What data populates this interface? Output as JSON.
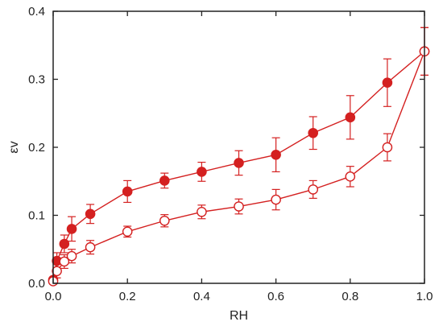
{
  "chart_data": {
    "type": "scatter",
    "xlabel": "RH",
    "ylabel": "εv",
    "xlim": [
      0.0,
      1.0
    ],
    "ylim": [
      0.0,
      0.4
    ],
    "xticks": [
      0.0,
      0.2,
      0.4,
      0.6,
      0.8,
      1.0
    ],
    "yticks": [
      0.0,
      0.1,
      0.2,
      0.3,
      0.4
    ],
    "xtick_labels": [
      "0.0",
      "0.2",
      "0.4",
      "0.6",
      "0.8",
      "1.0"
    ],
    "ytick_labels": [
      "0.0",
      "0.1",
      "0.2",
      "0.3",
      "0.4"
    ],
    "grid": false,
    "legend": "none",
    "colors": {
      "series": "#d42020",
      "axis": "#222222"
    },
    "series": [
      {
        "marker": "filled-circle",
        "x": [
          0.0,
          0.01,
          0.03,
          0.05,
          0.1,
          0.2,
          0.3,
          0.4,
          0.5,
          0.6,
          0.7,
          0.8,
          0.9,
          1.0
        ],
        "y": [
          0.005,
          0.033,
          0.058,
          0.08,
          0.102,
          0.135,
          0.151,
          0.164,
          0.177,
          0.189,
          0.221,
          0.244,
          0.295,
          0.341
        ],
        "err": [
          0.004,
          0.012,
          0.013,
          0.018,
          0.014,
          0.016,
          0.011,
          0.014,
          0.018,
          0.025,
          0.024,
          0.032,
          0.035,
          0.035
        ]
      },
      {
        "marker": "open-circle",
        "x": [
          0.0,
          0.01,
          0.03,
          0.05,
          0.1,
          0.2,
          0.3,
          0.4,
          0.5,
          0.6,
          0.7,
          0.8,
          0.9,
          1.0
        ],
        "y": [
          0.003,
          0.018,
          0.032,
          0.04,
          0.053,
          0.076,
          0.092,
          0.105,
          0.113,
          0.123,
          0.138,
          0.157,
          0.2,
          0.341
        ],
        "err": [
          0.003,
          0.01,
          0.01,
          0.01,
          0.01,
          0.008,
          0.009,
          0.01,
          0.011,
          0.015,
          0.013,
          0.015,
          0.02,
          0.035
        ]
      }
    ]
  }
}
